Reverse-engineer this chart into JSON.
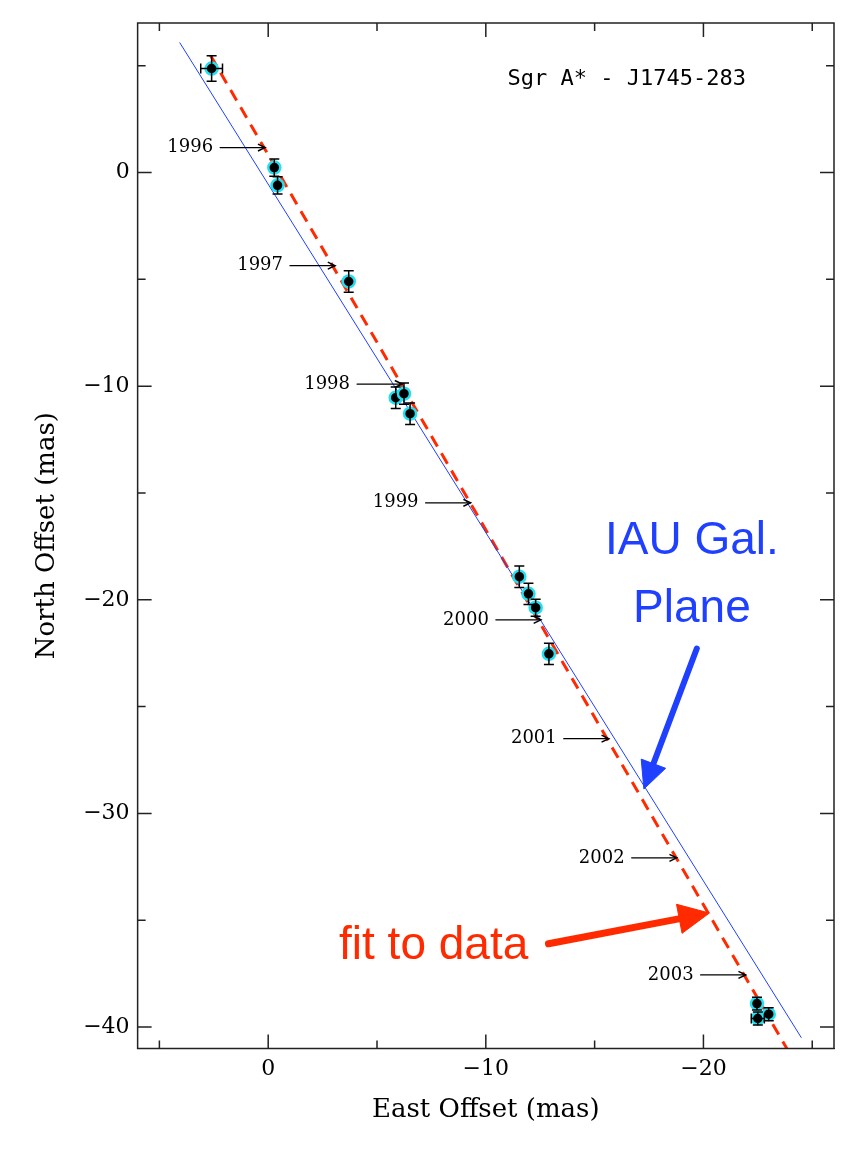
{
  "chart_data": {
    "type": "scatter",
    "title": "Sgr A* - J1745-283",
    "xlabel": "East Offset (mas)",
    "ylabel": "North Offset (mas)",
    "xlim": [
      6,
      -26
    ],
    "xticks": [
      {
        "value": 5,
        "label": null
      },
      0,
      {
        "value": -5,
        "label": null
      },
      -10,
      {
        "value": -15,
        "label": null
      },
      -20,
      {
        "value": -25,
        "label": null
      }
    ],
    "ylim": [
      -41,
      7
    ],
    "yticks": [
      {
        "value": 5,
        "label": null
      },
      0,
      {
        "value": -5,
        "label": null
      },
      -10,
      {
        "value": -15,
        "label": null
      },
      -20,
      {
        "value": -25,
        "label": null
      },
      -30,
      {
        "value": -35,
        "label": null
      },
      -40
    ],
    "grid": false,
    "legend": false,
    "marker": "circle",
    "series": [
      {
        "color": "#000000",
        "x": [
          2.6,
          -0.28,
          -0.43,
          -3.7,
          -5.86,
          -6.24,
          -6.52,
          -11.54,
          -11.96,
          -12.29,
          -12.9,
          -22.46,
          -22.5,
          -23.0
        ],
        "values": [
          4.87,
          0.23,
          -0.6,
          -5.1,
          -10.54,
          -10.35,
          -11.29,
          -18.92,
          -19.72,
          -20.37,
          -22.53,
          -38.9,
          -39.6,
          -39.4
        ],
        "errors": [
          0.6,
          0.4,
          0.4,
          0.5,
          0.5,
          0.5,
          0.5,
          0.5,
          0.5,
          0.4,
          0.5,
          0.3,
          0.3,
          0.3
        ],
        "xerrors": [
          0.5,
          null,
          null,
          null,
          null,
          null,
          null,
          null,
          null,
          null,
          null,
          null,
          0.3,
          null
        ]
      },
      {
        "type": "line",
        "color": "#2040ff",
        "line_style": "solid",
        "marker": "none",
        "x": [
          4.07,
          -24.5
        ],
        "values": [
          6.09,
          -40.5
        ]
      },
      {
        "type": "line",
        "color": "#ff2a00",
        "line_style": "dashed",
        "marker": "none",
        "x": [
          2.65,
          -23.83
        ],
        "values": [
          5.48,
          -41.0
        ]
      }
    ],
    "annotations": [
      {
        "text": "1996",
        "x": 0.14,
        "y": 1.17
      },
      {
        "text": "1997",
        "x": -3.07,
        "y": -4.36
      },
      {
        "text": "1998",
        "x": -6.15,
        "y": -9.9
      },
      {
        "text": "1999",
        "x": -9.3,
        "y": -15.46
      },
      {
        "text": "2000",
        "x": -12.53,
        "y": -20.94
      },
      {
        "text": "2001",
        "x": -15.65,
        "y": -26.5
      },
      {
        "text": "2002",
        "x": -18.77,
        "y": -32.08
      },
      {
        "text": "2003",
        "x": -21.94,
        "y": -37.56
      },
      "IAU Gal.\nPlane",
      "fit to data"
    ]
  }
}
